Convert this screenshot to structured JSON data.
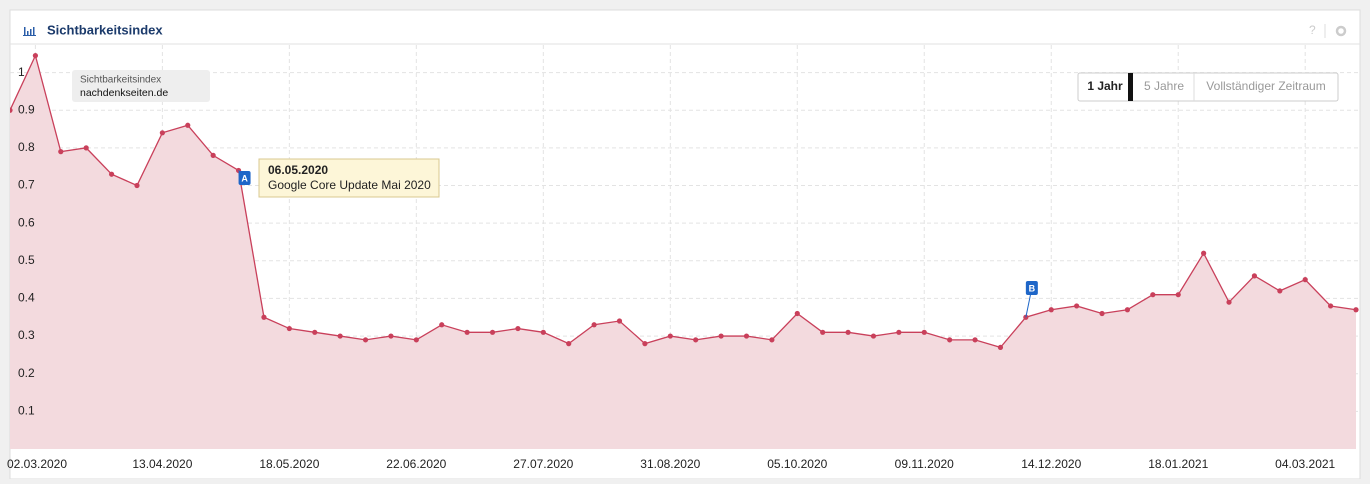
{
  "header": {
    "title": "Sichtbarkeitsindex",
    "help": "?"
  },
  "legend": {
    "title": "Sichtbarkeitsindex",
    "domain": "nachdenkseiten.de"
  },
  "buttons": [
    "1 Jahr",
    "5 Jahre",
    "Vollständiger Zeitraum"
  ],
  "chart_data": {
    "type": "area",
    "color": "#c9405b",
    "fill": "#f3dade",
    "categories": [
      null,
      "02.03.2020",
      null,
      null,
      null,
      null,
      "13.04.2020",
      null,
      null,
      null,
      null,
      "18.05.2020",
      null,
      null,
      null,
      null,
      "22.06.2020",
      null,
      null,
      null,
      null,
      "27.07.2020",
      null,
      null,
      null,
      null,
      "31.08.2020",
      null,
      null,
      null,
      null,
      "05.10.2020",
      null,
      null,
      null,
      null,
      "09.11.2020",
      null,
      null,
      null,
      null,
      "14.12.2020",
      null,
      null,
      null,
      null,
      "18.01.2021",
      null,
      null,
      null,
      null,
      "04.03.2021",
      null,
      null
    ],
    "values": [
      0.9,
      1.045,
      0.79,
      0.8,
      0.73,
      0.7,
      0.84,
      0.86,
      0.78,
      0.74,
      0.35,
      0.32,
      0.31,
      0.3,
      0.29,
      0.3,
      0.29,
      0.33,
      0.31,
      0.31,
      0.32,
      0.31,
      0.28,
      0.33,
      0.34,
      0.28,
      0.3,
      0.29,
      0.3,
      0.3,
      0.29,
      0.36,
      0.31,
      0.31,
      0.3,
      0.31,
      0.31,
      0.29,
      0.29,
      0.27,
      0.35,
      0.37,
      0.38,
      0.36,
      0.37,
      0.41,
      0.41,
      0.52,
      0.39,
      0.46,
      0.42,
      0.45,
      0.38,
      0.37
    ],
    "ylim": [
      0,
      1.06
    ],
    "yticks": [
      0.1,
      0.2,
      0.3,
      0.4,
      0.5,
      0.6,
      0.7,
      0.8,
      0.9,
      1
    ],
    "grid": true,
    "annotations": [
      {
        "label": "A",
        "date": "06.05.2020",
        "text": "Google Core Update Mai 2020"
      },
      {
        "label": "B"
      }
    ]
  }
}
